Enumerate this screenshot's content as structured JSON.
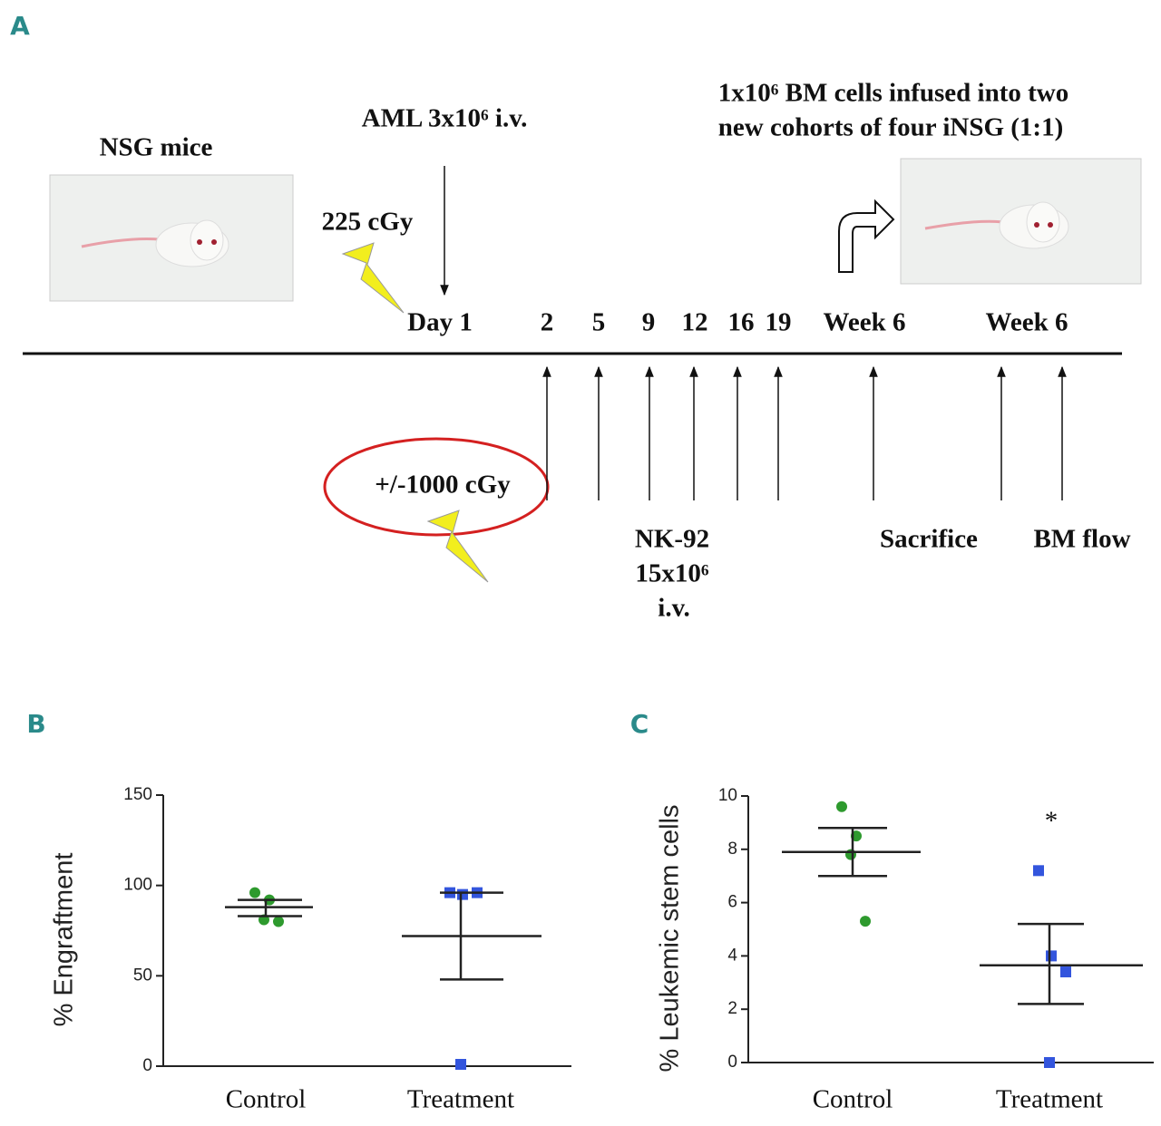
{
  "panel_a": {
    "label": "A",
    "mouse_label": "NSG mice",
    "aml": "AML 3x10⁶ i.v.",
    "dose": "225 cGy",
    "transfer": [
      "1x10⁶ BM cells infused into two",
      "new cohorts of four iNSG (1:1)"
    ],
    "timeline": [
      "Day 1",
      "2",
      "5",
      "9",
      "12",
      "16",
      "19",
      "Week 6",
      "Week 6"
    ],
    "irradiation": "+/-1000 cGy",
    "nk": [
      "NK-92",
      "15x10⁶",
      "i.v."
    ],
    "sacrifice": "Sacrifice",
    "bm_flow": "BM flow"
  },
  "chart_data": [
    {
      "type": "scatter",
      "panel": "B",
      "ylabel": "% Engraftment",
      "categories": [
        "Control",
        "Treatment"
      ],
      "ylim": [
        0,
        150
      ],
      "yticks": [
        0,
        50,
        100,
        150
      ],
      "series": [
        {
          "color": "#2e9a2e",
          "marker": "circle",
          "values": [
            96,
            92,
            81,
            80
          ]
        },
        {
          "color": "#3355dd",
          "marker": "square",
          "values": [
            96,
            95,
            96,
            1
          ]
        }
      ],
      "summary": [
        {
          "mean": 88,
          "upper": 92,
          "lower": 83
        },
        {
          "mean": 72,
          "upper": 96,
          "lower": 48
        }
      ]
    },
    {
      "type": "scatter",
      "panel": "C",
      "ylabel": "% Leukemic stem cells",
      "categories": [
        "Control",
        "Treatment"
      ],
      "ylim": [
        0,
        10
      ],
      "yticks": [
        0,
        2,
        4,
        6,
        8,
        10
      ],
      "series": [
        {
          "color": "#2e9a2e",
          "marker": "circle",
          "values": [
            9.6,
            8.5,
            7.8,
            5.3
          ]
        },
        {
          "color": "#3355dd",
          "marker": "square",
          "values": [
            7.2,
            4.0,
            3.4,
            0
          ]
        }
      ],
      "summary": [
        {
          "mean": 7.9,
          "upper": 8.8,
          "lower": 7.0
        },
        {
          "mean": 3.65,
          "upper": 5.2,
          "lower": 2.2
        }
      ],
      "annotation": "*"
    }
  ]
}
